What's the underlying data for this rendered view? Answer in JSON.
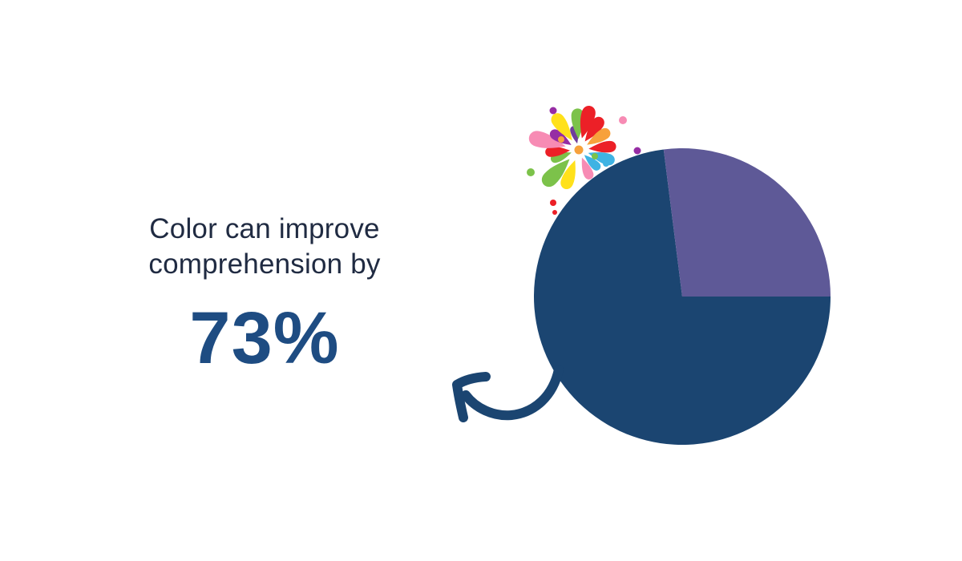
{
  "slide": {
    "background": "#FFFFFF",
    "headline": {
      "line1": "Color can improve",
      "line2": "comprehension by",
      "stat": "73%",
      "text_color": "#202B42",
      "stat_color": "#1E4C82"
    }
  },
  "chart_data": {
    "type": "pie",
    "title": "Color can improve comprehension by 73%",
    "slices": [
      {
        "value": 73,
        "color": "#1B4571"
      },
      {
        "value": 27,
        "color": "#5E5997"
      }
    ],
    "total": 100,
    "start_angle_deg": 97.2,
    "direction": "counterclockwise",
    "data_labels": false,
    "legend": false
  },
  "decorations": {
    "arrow_color": "#1B4571",
    "firework_palette": {
      "red": "#EC2027",
      "orange": "#F7A13C",
      "yellow": "#FFE11A",
      "green": "#7CC24A",
      "pink": "#F78BB4",
      "purple": "#962DA4",
      "violet": "#6F3D9B",
      "teal": "#3FB3E3"
    }
  }
}
